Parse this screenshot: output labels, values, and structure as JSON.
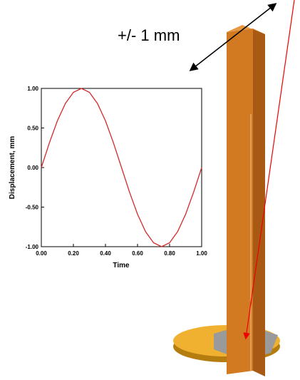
{
  "annotation": "+/- 1 mm",
  "chart_data": {
    "type": "line",
    "xlabel": "Time",
    "ylabel": "Displacement, mm",
    "x": [
      0,
      0.05,
      0.1,
      0.15,
      0.2,
      0.25,
      0.3,
      0.35,
      0.4,
      0.45,
      0.5,
      0.55,
      0.6,
      0.65,
      0.7,
      0.75,
      0.8,
      0.85,
      0.9,
      0.95,
      1
    ],
    "series": [
      {
        "color": "#d42a2a",
        "values": [
          0,
          0.31,
          0.59,
          0.81,
          0.95,
          1,
          0.95,
          0.81,
          0.59,
          0.31,
          0,
          -0.31,
          -0.59,
          -0.81,
          -0.95,
          -1,
          -0.95,
          -0.81,
          -0.59,
          -0.31,
          0
        ]
      }
    ],
    "xlim": [
      0,
      1
    ],
    "ylim": [
      -1,
      1
    ],
    "xticks": [
      {
        "value": 0,
        "label": "0.00"
      },
      {
        "value": 0.2,
        "label": "0.20"
      },
      {
        "value": 0.4,
        "label": "0.40"
      },
      {
        "value": 0.6,
        "label": "0.60"
      },
      {
        "value": 0.8,
        "label": "0.80"
      },
      {
        "value": 1,
        "label": "1.00"
      }
    ],
    "yticks": [
      {
        "value": -1,
        "label": "-1.00"
      },
      {
        "value": -0.5,
        "label": "-0.50"
      },
      {
        "value": 0,
        "label": "0.00"
      },
      {
        "value": 0.5,
        "label": "0.50"
      },
      {
        "value": 1,
        "label": "1.00"
      }
    ]
  }
}
